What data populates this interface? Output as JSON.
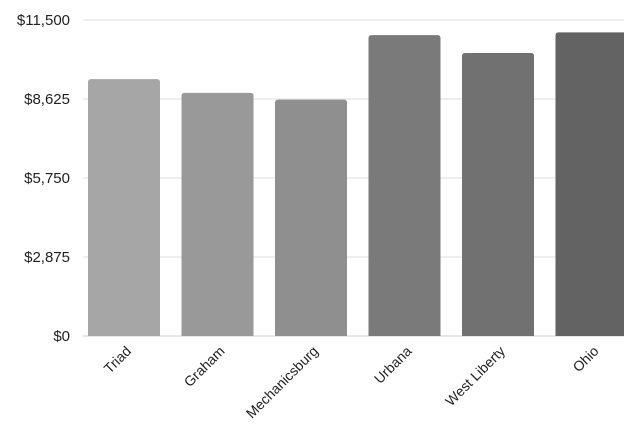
{
  "chart_data": {
    "type": "bar",
    "title": "",
    "xlabel": "",
    "ylabel": "",
    "categories": [
      "Triad",
      "Graham",
      "Mechanicsburg",
      "Urbana",
      "West Liberty",
      "Ohio"
    ],
    "values": [
      9350,
      8850,
      8600,
      10950,
      10300,
      11050
    ],
    "ylim": [
      0,
      11500
    ],
    "yticks": [
      0,
      2875,
      5750,
      8625,
      11500
    ],
    "ytick_labels": [
      "$0",
      "$2,875",
      "$5,750",
      "$8,625",
      "$11,500"
    ],
    "colors": [
      "#a6a6a6",
      "#999999",
      "#8f8f8f",
      "#7a7a7a",
      "#717171",
      "#636363"
    ],
    "grid": true,
    "legend": "none"
  }
}
